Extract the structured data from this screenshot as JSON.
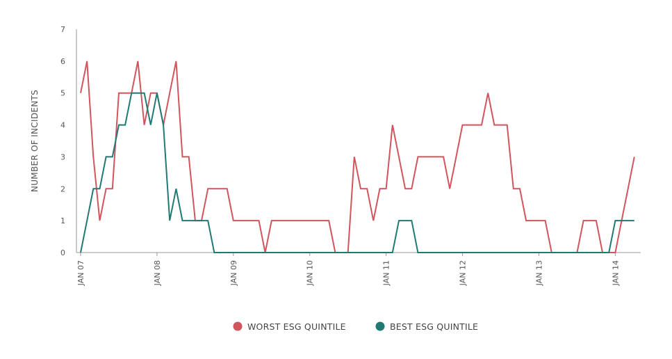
{
  "chart_data": {
    "type": "line",
    "title": "",
    "xlabel": "",
    "ylabel": "NUMBER OF INCIDENTS",
    "ylim": [
      0,
      7
    ],
    "yticks": [
      0,
      1,
      2,
      3,
      4,
      5,
      6,
      7
    ],
    "xlim": [
      "2007-01",
      "2014-05"
    ],
    "xticks": [
      {
        "label": "JAN 07",
        "x": "2007-01"
      },
      {
        "label": "JAN 08",
        "x": "2008-01"
      },
      {
        "label": "JAN 09",
        "x": "2009-01"
      },
      {
        "label": "JAN 10",
        "x": "2010-01"
      },
      {
        "label": "JAN 11",
        "x": "2011-01"
      },
      {
        "label": "JAN 12",
        "x": "2012-01"
      },
      {
        "label": "JAN 13",
        "x": "2013-01"
      },
      {
        "label": "JAN 14",
        "x": "2014-01"
      }
    ],
    "grid": false,
    "legend_position": "bottom",
    "series": [
      {
        "name": "WORST ESG QUINTILE",
        "color": "#d2545c",
        "x": [
          "2007-01",
          "2007-02",
          "2007-03",
          "2007-04",
          "2007-05",
          "2007-06",
          "2007-07",
          "2007-08",
          "2007-09",
          "2007-10",
          "2007-11",
          "2007-12",
          "2008-01",
          "2008-02",
          "2008-03",
          "2008-04",
          "2008-05",
          "2008-06",
          "2008-07",
          "2008-08",
          "2008-09",
          "2008-10",
          "2008-11",
          "2008-12",
          "2009-01",
          "2009-02",
          "2009-03",
          "2009-04",
          "2009-05",
          "2009-06",
          "2009-07",
          "2009-08",
          "2009-09",
          "2009-10",
          "2009-11",
          "2009-12",
          "2010-01",
          "2010-02",
          "2010-03",
          "2010-04",
          "2010-05",
          "2010-06",
          "2010-07",
          "2010-08",
          "2010-09",
          "2010-10",
          "2010-11",
          "2010-12",
          "2011-01",
          "2011-02",
          "2011-03",
          "2011-04",
          "2011-05",
          "2011-06",
          "2011-07",
          "2011-08",
          "2011-09",
          "2011-10",
          "2011-11",
          "2011-12",
          "2012-01",
          "2012-02",
          "2012-03",
          "2012-04",
          "2012-05",
          "2012-06",
          "2012-07",
          "2012-08",
          "2012-09",
          "2012-10",
          "2012-11",
          "2012-12",
          "2013-01",
          "2013-02",
          "2013-03",
          "2013-04",
          "2013-05",
          "2013-06",
          "2013-07",
          "2013-08",
          "2013-09",
          "2013-10",
          "2013-11",
          "2013-12",
          "2014-01",
          "2014-02",
          "2014-03",
          "2014-04"
        ],
        "values": [
          5,
          6,
          3,
          1,
          2,
          2,
          5,
          5,
          5,
          6,
          4,
          5,
          5,
          4,
          5,
          6,
          3,
          3,
          1,
          1,
          2,
          2,
          2,
          2,
          1,
          1,
          1,
          1,
          1,
          0,
          1,
          1,
          1,
          1,
          1,
          1,
          1,
          1,
          1,
          1,
          0,
          0,
          0,
          3,
          2,
          2,
          1,
          2,
          2,
          4,
          3,
          2,
          2,
          3,
          3,
          3,
          3,
          3,
          2,
          3,
          4,
          4,
          4,
          4,
          5,
          4,
          4,
          4,
          2,
          2,
          1,
          1,
          1,
          1,
          0,
          0,
          0,
          0,
          0,
          1,
          1,
          1,
          0,
          0,
          0,
          1,
          2,
          3
        ]
      },
      {
        "name": "BEST ESG QUINTILE",
        "color": "#1e7a72",
        "x": [
          "2007-01",
          "2007-02",
          "2007-03",
          "2007-04",
          "2007-05",
          "2007-06",
          "2007-07",
          "2007-08",
          "2007-09",
          "2007-10",
          "2007-11",
          "2007-12",
          "2008-01",
          "2008-02",
          "2008-03",
          "2008-04",
          "2008-05",
          "2008-06",
          "2008-07",
          "2008-08",
          "2008-09",
          "2008-10",
          "2008-11",
          "2008-12",
          "2009-01",
          "2009-02",
          "2009-03",
          "2009-04",
          "2009-05",
          "2009-06",
          "2009-07",
          "2009-08",
          "2009-09",
          "2009-10",
          "2009-11",
          "2009-12",
          "2010-01",
          "2010-02",
          "2010-03",
          "2010-04",
          "2010-05",
          "2010-06",
          "2010-07",
          "2010-08",
          "2010-09",
          "2010-10",
          "2010-11",
          "2010-12",
          "2011-01",
          "2011-02",
          "2011-03",
          "2011-04",
          "2011-05",
          "2011-06",
          "2011-07",
          "2011-08",
          "2011-09",
          "2011-10",
          "2011-11",
          "2011-12",
          "2012-01",
          "2012-02",
          "2012-03",
          "2012-04",
          "2012-05",
          "2012-06",
          "2012-07",
          "2012-08",
          "2012-09",
          "2012-10",
          "2012-11",
          "2012-12",
          "2013-01",
          "2013-02",
          "2013-03",
          "2013-04",
          "2013-05",
          "2013-06",
          "2013-07",
          "2013-08",
          "2013-09",
          "2013-10",
          "2013-11",
          "2013-12",
          "2014-01",
          "2014-02",
          "2014-03",
          "2014-04"
        ],
        "values": [
          0,
          1,
          2,
          2,
          3,
          3,
          4,
          4,
          5,
          5,
          5,
          4,
          5,
          4,
          1,
          2,
          1,
          1,
          1,
          1,
          1,
          0,
          0,
          0,
          0,
          0,
          0,
          0,
          0,
          0,
          0,
          0,
          0,
          0,
          0,
          0,
          0,
          0,
          0,
          0,
          0,
          0,
          0,
          0,
          0,
          0,
          0,
          0,
          0,
          0,
          1,
          1,
          1,
          0,
          0,
          0,
          0,
          0,
          0,
          0,
          0,
          0,
          0,
          0,
          0,
          0,
          0,
          0,
          0,
          0,
          0,
          0,
          0,
          0,
          0,
          0,
          0,
          0,
          0,
          0,
          0,
          0,
          0,
          0,
          1,
          1,
          1,
          1
        ]
      }
    ]
  }
}
